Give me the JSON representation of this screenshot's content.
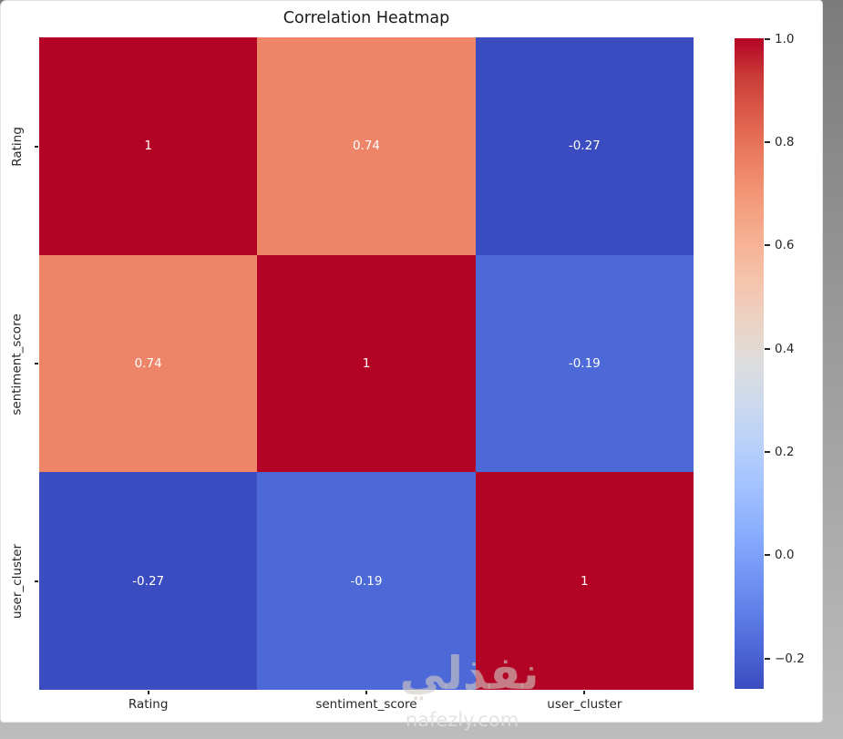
{
  "watermark": {
    "arabic": "نفذلي",
    "domain": "nafezly.com"
  },
  "chart_data": {
    "type": "heatmap",
    "title": "Correlation Heatmap",
    "categories": [
      "Rating",
      "sentiment_score",
      "user_cluster"
    ],
    "matrix": [
      [
        1,
        0.74,
        -0.27
      ],
      [
        0.74,
        1,
        -0.19
      ],
      [
        -0.27,
        -0.19,
        1
      ]
    ],
    "cell_labels": [
      [
        "1",
        "0.74",
        "-0.27"
      ],
      [
        "0.74",
        "1",
        "-0.19"
      ],
      [
        "-0.27",
        "-0.19",
        "1"
      ]
    ],
    "cell_colors": [
      [
        "#b40426",
        "#ee8468",
        "#3b4cc0"
      ],
      [
        "#ee8468",
        "#b40426",
        "#4d68d7"
      ],
      [
        "#3b4cc0",
        "#4d68d7",
        "#b40426"
      ]
    ],
    "annotation_text_color": "#ffffff",
    "colormap": "coolwarm",
    "value_range": [
      -0.27,
      1.0
    ],
    "grid": false,
    "legend_position": "right",
    "colorbar": {
      "ticks": [
        "1.0",
        "0.8",
        "0.6",
        "0.4",
        "0.2",
        "0.0",
        "−0.2"
      ],
      "top_color": "#b40426",
      "mid_color": "#dddddd",
      "bottom_color": "#3b4cc0"
    }
  }
}
